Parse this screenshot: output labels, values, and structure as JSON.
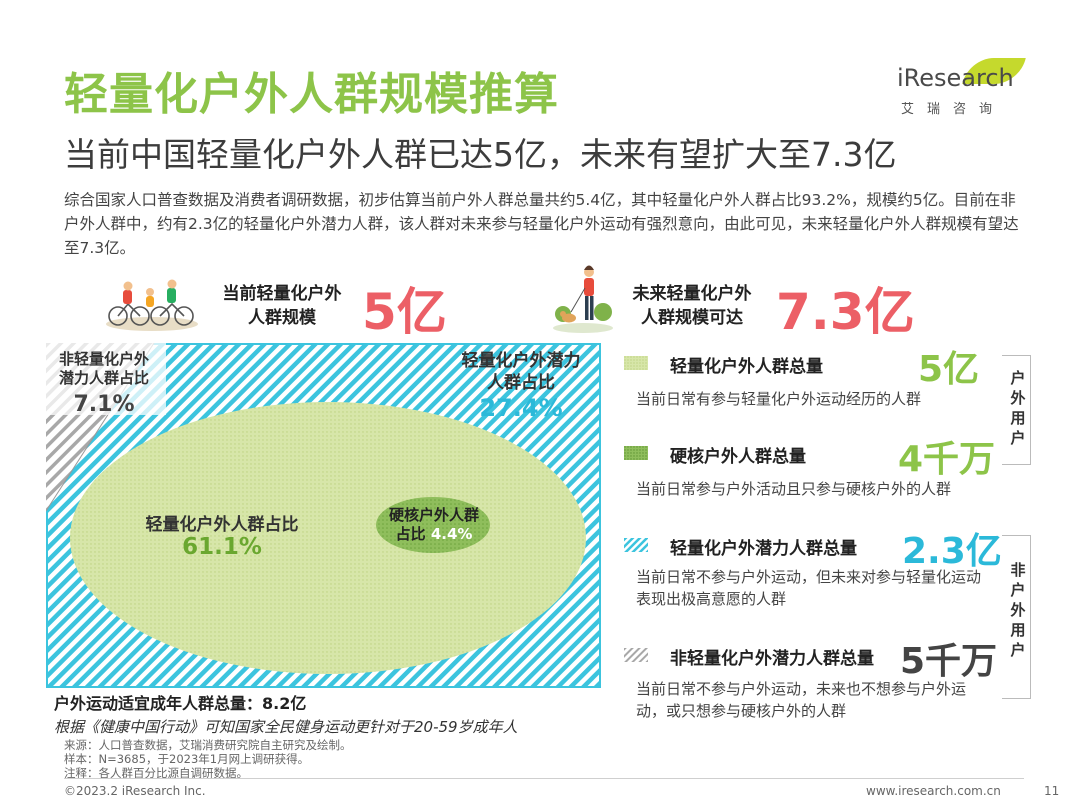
{
  "title": "轻量化户外人群规模推算",
  "subtitle": "当前中国轻量化户外人群已达5亿，未来有望扩大至7.3亿",
  "intro": "综合国家人口普查数据及消费者调研数据，初步估算当前户外人群总量共约5.4亿，其中轻量化户外人群占比93.2%，规模约5亿。目前在非户外人群中，约有2.3亿的轻量化户外潜力人群，该人群对未来参与轻量化户外运动有强烈意向，由此可见，未来轻量化户外人群规模有望达至7.3亿。",
  "logo": {
    "brand": "Research",
    "brand_i": "i",
    "sub": "艾瑞咨询"
  },
  "current": {
    "label_line1": "当前轻量化户外",
    "label_line2": "人群规模",
    "value": "5亿"
  },
  "future": {
    "label_line1": "未来轻量化户外",
    "label_line2": "人群规模可达",
    "value": "7.3亿"
  },
  "diagram": {
    "non_light_potential": {
      "label_line1": "非轻量化户外",
      "label_line2": "潜力人群占比",
      "pct": "7.1%"
    },
    "light_potential": {
      "label_line1": "轻量化户外潜力",
      "label_line2": "人群占比",
      "pct": "27.4%"
    },
    "light": {
      "label": "轻量化户外人群占比",
      "pct": "61.1%"
    },
    "hardcore": {
      "label_line1": "硬核户外人群",
      "label_line2": "占比",
      "pct": "4.4%"
    }
  },
  "legend": [
    {
      "title": "轻量化户外人群总量",
      "value": "5亿",
      "desc": "当前日常有参与轻量化户外运动经历的人群"
    },
    {
      "title": "硬核户外人群总量",
      "value": "4千万",
      "desc": "当前日常参与户外活动且只参与硬核户外的人群"
    },
    {
      "title": "轻量化户外潜力人群总量",
      "value": "2.3亿",
      "desc": "当前日常不参与户外运动，但未来对参与轻量化运动表现出极高意愿的人群"
    },
    {
      "title": "非轻量化户外潜力人群总量",
      "value": "5千万",
      "desc": "当前日常不参与户外运动，未来也不想参与户外运动，或只想参与硬核户外的人群"
    }
  ],
  "brackets": {
    "outdoor": "户外用户",
    "non_outdoor": "非户外用户"
  },
  "total": "户外运动适宜成年人群总量：8.2亿",
  "note": "根据《健康中国行动》可知国家全民健身运动更针对于20-59岁成年人",
  "footnotes": {
    "source": "来源：人口普查数据，艾瑞消费研究院自主研究及绘制。",
    "sample": "样本：N=3685，于2023年1月网上调研获得。",
    "remark": "注释：各人群百分比源自调研数据。"
  },
  "copyright": "©2023.2 iResearch Inc.",
  "website": "www.iresearch.com.cn",
  "page_number": "11",
  "colors": {
    "green": "#8dc449",
    "light_green": "#d2e4a2",
    "cyan": "#2bb9d9",
    "red": "#ec5f66",
    "gray": "#9a9a9a"
  }
}
